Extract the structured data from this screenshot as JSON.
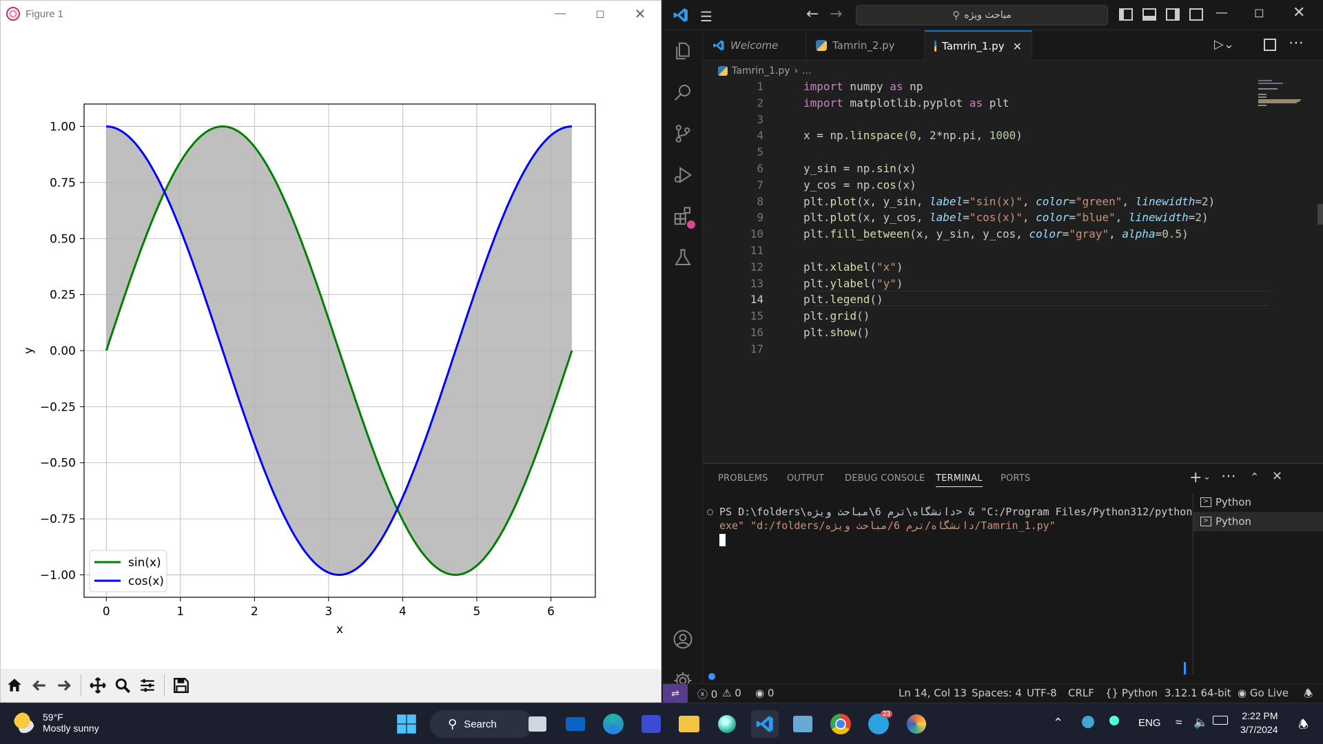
{
  "figure": {
    "title": "Figure 1",
    "toolbar": [
      "home-icon",
      "back-icon",
      "forward-icon",
      "pan-icon",
      "zoom-icon",
      "configure-icon",
      "save-icon"
    ]
  },
  "chart_data": {
    "type": "line",
    "title": "",
    "xlabel": "x",
    "ylabel": "y",
    "xlim": [
      -0.3,
      6.6
    ],
    "ylim": [
      -1.1,
      1.1
    ],
    "xticks": [
      "0",
      "1",
      "2",
      "3",
      "4",
      "5",
      "6"
    ],
    "yticks": [
      "1.00",
      "0.75",
      "0.50",
      "0.25",
      "0.00",
      "−0.25",
      "−0.50",
      "−0.75",
      "−1.00"
    ],
    "grid": true,
    "legend_position": "lower-left",
    "series": [
      {
        "name": "sin(x)",
        "function": "sin",
        "color": "#008000",
        "linewidth": 2
      },
      {
        "name": "cos(x)",
        "function": "cos",
        "color": "#0000ff",
        "linewidth": 2
      }
    ],
    "fill_between": {
      "color": "#808080",
      "alpha": 0.5
    },
    "x_range": [
      0,
      6.283185
    ],
    "samples": 1000
  },
  "vscode": {
    "search": "مباحث ویژه",
    "tabs": [
      {
        "label": "Welcome"
      },
      {
        "label": "Tamrin_2.py"
      },
      {
        "label": "Tamrin_1.py"
      }
    ],
    "breadcrumb": "Tamrin_1.py",
    "breadcrumb_more": "...",
    "line_numbers": [
      "1",
      "2",
      "3",
      "4",
      "5",
      "6",
      "7",
      "8",
      "9",
      "10",
      "11",
      "12",
      "13",
      "14",
      "15",
      "16",
      "17"
    ],
    "panel_tabs": [
      "PROBLEMS",
      "OUTPUT",
      "DEBUG CONSOLE",
      "TERMINAL",
      "PORTS"
    ],
    "terminal_line1": "PS D:\\folders\\دانشگاه\\ترم 6\\مباحث ویژه> & \"C:/Program Files/Python312/python.",
    "terminal_line2": "exe\" \"d:/folders/دانشگاه/ترم 6/مباحث ویژه/Tamrin_1.py\"",
    "terminals": [
      "Python",
      "Python"
    ],
    "status": {
      "errors": "0",
      "warnings": "0",
      "ports": "0",
      "position": "Ln 14, Col 13",
      "spaces": "Spaces: 4",
      "encoding": "UTF-8",
      "eol": "CRLF",
      "language": "Python",
      "version": "3.12.1 64-bit",
      "golive": "Go Live"
    }
  },
  "taskbar": {
    "temp": "59°F",
    "weather": "Mostly sunny",
    "search": "Search",
    "lang": "ENG",
    "time": "2:22 PM",
    "date": "3/7/2024",
    "telegram_badge": "23"
  }
}
